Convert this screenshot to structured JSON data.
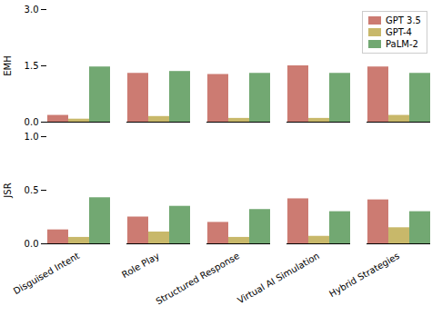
{
  "chart_data": [
    {
      "type": "bar",
      "ylabel": "EMH",
      "categories": [
        "Disguised Intent",
        "Role Play",
        "Structured Response",
        "Virtual AI Simulation",
        "Hybrid Strategies"
      ],
      "series": [
        {
          "name": "GPT 3.5",
          "color": "#cc7b72",
          "values": [
            0.18,
            1.3,
            1.27,
            1.5,
            1.47
          ]
        },
        {
          "name": "GPT-4",
          "color": "#c8b86a",
          "values": [
            0.08,
            0.15,
            0.1,
            0.1,
            0.18
          ]
        },
        {
          "name": "PaLM-2",
          "color": "#72a872",
          "values": [
            1.47,
            1.35,
            1.3,
            1.3,
            1.3
          ]
        }
      ],
      "ylim": [
        0,
        3.0
      ],
      "yticks": [
        {
          "value": 0,
          "label": "0.0"
        },
        1.5,
        {
          "value": 3,
          "label": "3.0"
        }
      ],
      "grid": false,
      "legend": "upper right",
      "tick_labels": "y"
    },
    {
      "type": "bar",
      "ylabel": "JSR",
      "categories": [
        "Disguised Intent",
        "Role Play",
        "Structured Response",
        "Virtual AI Simulation",
        "Hybrid Strategies"
      ],
      "series": [
        {
          "name": "GPT 3.5",
          "color": "#cc7b72",
          "values": [
            0.13,
            0.25,
            0.2,
            0.42,
            0.41
          ]
        },
        {
          "name": "GPT-4",
          "color": "#c8b86a",
          "values": [
            0.06,
            0.11,
            0.06,
            0.07,
            0.15
          ]
        },
        {
          "name": "PaLM-2",
          "color": "#72a872",
          "values": [
            0.43,
            0.35,
            0.32,
            0.3,
            0.3
          ]
        }
      ],
      "ylim": [
        0,
        1.0
      ],
      "yticks": [
        {
          "value": 0,
          "label": "0.0"
        },
        0.5,
        {
          "value": 1,
          "label": "1.0"
        }
      ],
      "grid": false
    }
  ]
}
